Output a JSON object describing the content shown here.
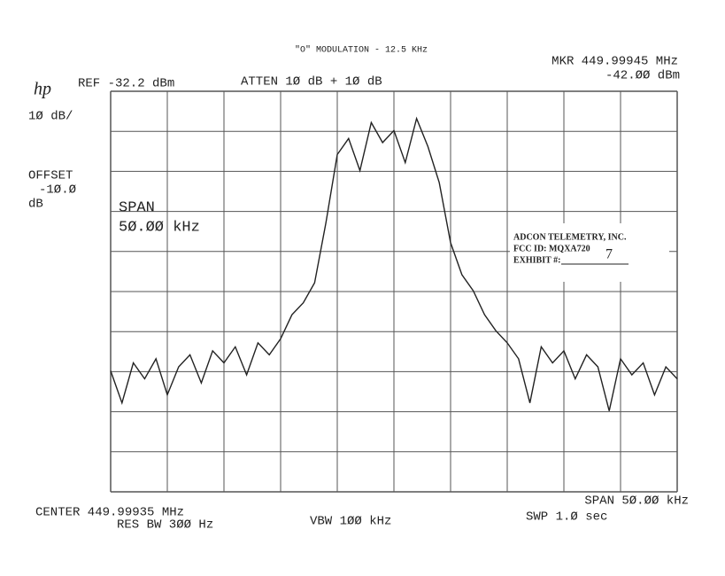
{
  "chart_data": {
    "type": "line",
    "title": "\"O\" MODULATION - 12.5 KHz",
    "brand": "hp",
    "ref_label": "REF -32.2 dBm",
    "atten_label": "ATTEN 1Ø dB + 1Ø dB",
    "marker_freq": "MKR 449.99945 MHz",
    "marker_level": "-42.ØØ dBm",
    "scale_label": "1Ø dB/",
    "offset_label": "OFFSET",
    "offset_value": "-1Ø.Ø",
    "offset_unit": "dB",
    "span_title": "SPAN",
    "span_value": "5Ø.ØØ kHz",
    "center_label": "CENTER 449.99935 MHz",
    "res_bw_label": "RES BW 3ØØ Hz",
    "vbw_label": "VBW 1ØØ kHz",
    "span_label": "SPAN 5Ø.ØØ kHz",
    "sweep_label": "SWP 1.Ø  sec",
    "stamp": {
      "company": "ADCON TELEMETRY, INC.",
      "fcc_id": "FCC ID:  MQXA720",
      "exhibit": "EXHIBIT #:",
      "exhibit_no": "7"
    },
    "color": "#222222",
    "xlim": [
      449.97435,
      450.02435
    ],
    "ylim": [
      -132.2,
      -32.2
    ],
    "x": [
      449.97435,
      449.97535,
      449.97635,
      449.97735,
      449.97835,
      449.97935,
      449.98035,
      449.98135,
      449.98235,
      449.98335,
      449.98435,
      449.98535,
      449.98635,
      449.98735,
      449.98835,
      449.98935,
      449.99035,
      449.99135,
      449.99235,
      449.99335,
      449.99435,
      449.99535,
      449.99635,
      449.99735,
      449.99835,
      449.99935,
      450.00035,
      450.00135,
      450.00235,
      450.00335,
      450.00435,
      450.00535,
      450.00635,
      450.00735,
      450.00835,
      450.00935,
      450.01035,
      450.01135,
      450.01235,
      450.01335,
      450.01435,
      450.01535,
      450.01635,
      450.01735,
      450.01835,
      450.01935,
      450.02035,
      450.02135,
      450.02235,
      450.02335,
      450.02435
    ],
    "values": [
      -102,
      -110,
      -100,
      -104,
      -99,
      -108,
      -101,
      -98,
      -105,
      -97,
      -100,
      -96,
      -103,
      -95,
      -98,
      -94,
      -88,
      -85,
      -80,
      -65,
      -48,
      -44,
      -52,
      -40,
      -45,
      -42,
      -50,
      -39,
      -46,
      -55,
      -70,
      -78,
      -82,
      -88,
      -92,
      -95,
      -99,
      -110,
      -96,
      -100,
      -97,
      -104,
      -98,
      -101,
      -112,
      -99,
      -103,
      -100,
      -108,
      -101,
      -104
    ]
  }
}
